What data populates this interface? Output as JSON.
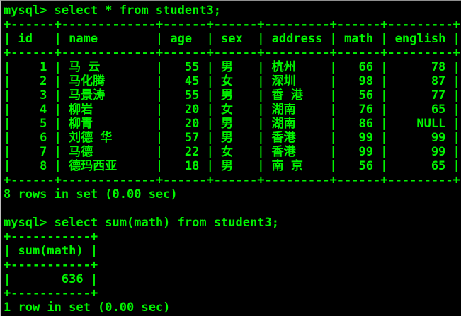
{
  "terminal": {
    "colors": {
      "background": "#000000",
      "foreground": "#00f500",
      "edge_left": "#bdbdbd",
      "edge_top": "#8f8f8f"
    },
    "glyphs": {
      "corner": "+",
      "dash": "-",
      "pipe": "|"
    },
    "command1": "mysql> select * from student3;",
    "result1": {
      "columns": [
        {
          "label": "id",
          "width": 6,
          "align": "right"
        },
        {
          "label": "name",
          "width": 13,
          "align": "left"
        },
        {
          "label": "age",
          "width": 6,
          "align": "right"
        },
        {
          "label": "sex",
          "width": 6,
          "align": "left"
        },
        {
          "label": "address",
          "width": 9,
          "align": "left"
        },
        {
          "label": "math",
          "width": 6,
          "align": "right"
        },
        {
          "label": "english",
          "width": 9,
          "align": "right"
        }
      ],
      "rows": [
        [
          "1",
          "马 云",
          "55",
          "男",
          "杭州",
          "66",
          "78"
        ],
        [
          "2",
          "马化腾",
          "45",
          "女",
          "深圳",
          "98",
          "87"
        ],
        [
          "3",
          "马景涛",
          "55",
          "男",
          "香 港",
          "56",
          "77"
        ],
        [
          "4",
          "柳岩",
          "20",
          "女",
          "湖南",
          "76",
          "65"
        ],
        [
          "5",
          "柳青",
          "20",
          "男",
          "湖南",
          "86",
          "NULL"
        ],
        [
          "6",
          "刘德 华",
          "57",
          "男",
          "香港",
          "99",
          "99"
        ],
        [
          "7",
          "马德",
          "22",
          "女",
          "香港",
          "99",
          "99"
        ],
        [
          "8",
          "德玛西亚",
          "18",
          "男",
          "南 京",
          "56",
          "65"
        ]
      ]
    },
    "status1": "8 rows in set (0.00 sec)",
    "command2": "mysql> select sum(math) from student3;",
    "result2": {
      "columns": [
        {
          "label": "sum(math)",
          "width": 11,
          "align": "right"
        }
      ],
      "rows": [
        [
          "636"
        ]
      ]
    },
    "status2": "1 row in set (0.00 sec)"
  }
}
